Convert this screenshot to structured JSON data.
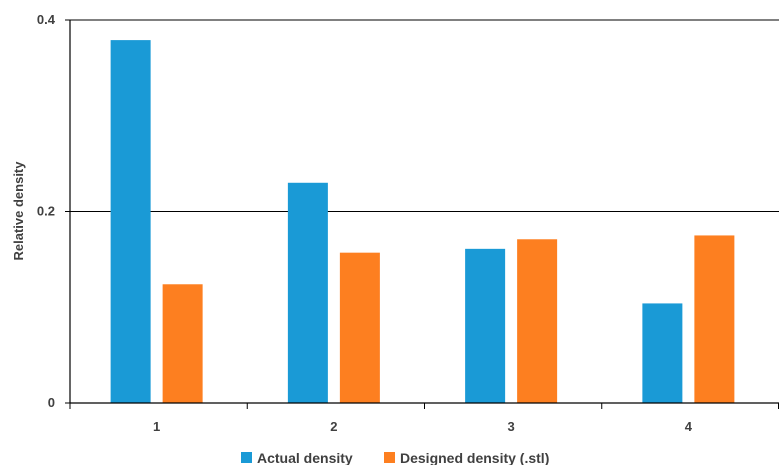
{
  "chart_data": {
    "type": "bar",
    "title": "",
    "xlabel": "",
    "ylabel": "Relative density",
    "categories": [
      "1",
      "2",
      "3",
      "4"
    ],
    "ylim": [
      0,
      0.4
    ],
    "yticks": [
      0,
      0.2,
      0.4
    ],
    "ytick_labels": [
      "0",
      "0.2",
      "0.4"
    ],
    "grid": "horizontal",
    "legend_position": "bottom",
    "series": [
      {
        "name": "Actual density",
        "color": "#1a9ad6",
        "values": [
          0.379,
          0.23,
          0.161,
          0.104
        ]
      },
      {
        "name": "Designed density (.stl)",
        "color": "#fd7f20",
        "values": [
          0.124,
          0.157,
          0.171,
          0.175
        ]
      }
    ]
  }
}
